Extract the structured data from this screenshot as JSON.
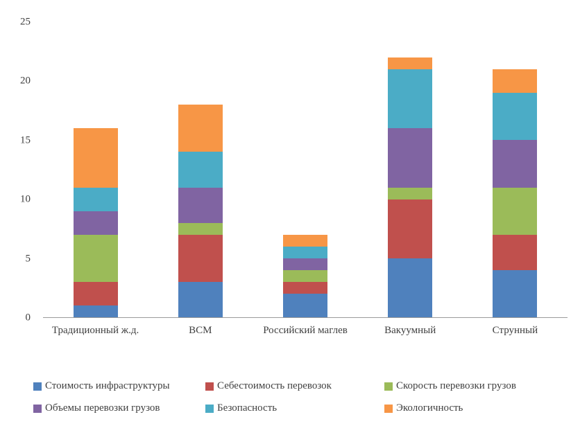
{
  "chart_data": {
    "type": "bar",
    "stacked": true,
    "title": "",
    "xlabel": "",
    "ylabel": "",
    "ylim": [
      0,
      25
    ],
    "y_ticks": [
      0,
      5,
      10,
      15,
      20,
      25
    ],
    "grid": false,
    "legend_position": "bottom",
    "categories": [
      "Традиционный ж.д.",
      "ВСМ",
      "Российский маглев",
      "Вакуумный",
      "Струнный"
    ],
    "series": [
      {
        "name": "Стоимость инфраструктуры",
        "color": "#4F81BD",
        "values": [
          1,
          3,
          2,
          5,
          4
        ]
      },
      {
        "name": "Себестоимость перевозок",
        "color": "#C0504D",
        "values": [
          2,
          4,
          1,
          5,
          3
        ]
      },
      {
        "name": "Скорость перевозки грузов",
        "color": "#9BBB59",
        "values": [
          4,
          1,
          1,
          1,
          4
        ]
      },
      {
        "name": "Объемы перевозки грузов",
        "color": "#8064A2",
        "values": [
          2,
          3,
          1,
          5,
          4
        ]
      },
      {
        "name": "Безопасность",
        "color": "#4BACC6",
        "values": [
          2,
          3,
          1,
          5,
          4
        ]
      },
      {
        "name": "Экологичность",
        "color": "#F79646",
        "values": [
          5,
          4,
          1,
          1,
          2
        ]
      }
    ],
    "totals": [
      16,
      18,
      7,
      22,
      21
    ]
  }
}
